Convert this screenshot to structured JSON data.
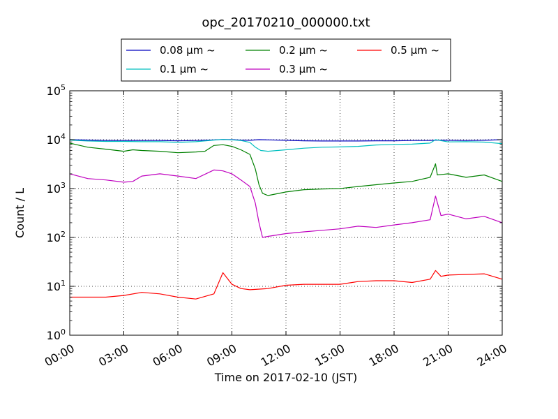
{
  "chart_data": {
    "type": "line",
    "title": "opc_20170210_000000.txt",
    "xlabel": "Time on 2017-02-10 (JST)",
    "ylabel": "Count / L",
    "xlim": [
      0,
      24
    ],
    "ylim": [
      1,
      100000
    ],
    "yscale": "log",
    "grid": true,
    "legend_position": "top-center",
    "legend_columns": 3,
    "x_ticks": [
      0,
      3,
      6,
      9,
      12,
      15,
      18,
      21,
      24
    ],
    "x_tick_labels": [
      "00:00",
      "03:00",
      "06:00",
      "09:00",
      "12:00",
      "15:00",
      "18:00",
      "21:00",
      "24:00"
    ],
    "y_ticks": [
      1,
      10,
      100,
      1000,
      10000,
      100000
    ],
    "y_tick_labels": [
      {
        "base": "10",
        "exp": "0"
      },
      {
        "base": "10",
        "exp": "1"
      },
      {
        "base": "10",
        "exp": "2"
      },
      {
        "base": "10",
        "exp": "3"
      },
      {
        "base": "10",
        "exp": "4"
      },
      {
        "base": "10",
        "exp": "5"
      }
    ],
    "series": [
      {
        "name": "0.08 μm ~",
        "color": "#0000bf",
        "x": [
          0,
          1,
          2,
          3,
          4,
          5,
          6,
          7,
          8,
          8.5,
          9,
          9.5,
          10,
          10.5,
          11,
          12,
          13,
          14,
          15,
          16,
          17,
          18,
          19,
          20,
          20.3,
          21,
          22,
          23,
          24
        ],
        "y": [
          10000,
          9800,
          9600,
          9600,
          9600,
          9600,
          9500,
          9600,
          9900,
          10100,
          10000,
          9800,
          9700,
          10000,
          9900,
          9700,
          9500,
          9400,
          9400,
          9400,
          9500,
          9500,
          9600,
          9600,
          9800,
          9700,
          9600,
          9700,
          10000
        ]
      },
      {
        "name": "0.1 μm ~",
        "color": "#00bfbf",
        "x": [
          0,
          1,
          2,
          3,
          4,
          5,
          6,
          7,
          8,
          8.5,
          9,
          9.5,
          10,
          10.3,
          10.6,
          11,
          12,
          13,
          14,
          15,
          16,
          17,
          18,
          19,
          20,
          20.3,
          21,
          22,
          23,
          24
        ],
        "y": [
          9800,
          9400,
          9200,
          9200,
          9100,
          9100,
          8800,
          9100,
          9800,
          10100,
          9900,
          9600,
          8800,
          7000,
          6000,
          5800,
          6200,
          6700,
          7000,
          7100,
          7300,
          7800,
          8000,
          8100,
          8500,
          10000,
          9000,
          9100,
          8900,
          8300
        ]
      },
      {
        "name": "0.2 μm ~",
        "color": "#008000",
        "x": [
          0,
          1,
          2,
          3,
          3.5,
          4,
          5,
          6,
          7,
          7.5,
          8,
          8.5,
          9,
          9.5,
          10,
          10.3,
          10.5,
          10.7,
          11,
          12,
          13,
          14,
          15,
          16,
          17,
          18,
          19,
          20,
          20.3,
          20.4,
          21,
          22,
          23,
          24
        ],
        "y": [
          8500,
          7000,
          6400,
          5800,
          6200,
          6000,
          5800,
          5400,
          5600,
          5800,
          7600,
          7900,
          7300,
          6200,
          5000,
          2500,
          1200,
          800,
          720,
          850,
          950,
          980,
          1000,
          1100,
          1200,
          1300,
          1400,
          1700,
          3200,
          1900,
          2000,
          1700,
          1900,
          1400
        ]
      },
      {
        "name": "0.3 μm ~",
        "color": "#bf00bf",
        "x": [
          0,
          1,
          2,
          3,
          3.5,
          4,
          5,
          6,
          7,
          8,
          8.5,
          9,
          9.5,
          10,
          10.3,
          10.5,
          10.7,
          11,
          12,
          13,
          14,
          15,
          16,
          17,
          18,
          19,
          20,
          20.3,
          20.6,
          21,
          22,
          23,
          24
        ],
        "y": [
          2000,
          1600,
          1500,
          1350,
          1400,
          1800,
          2000,
          1800,
          1600,
          2400,
          2300,
          2000,
          1500,
          1100,
          500,
          200,
          100,
          105,
          120,
          130,
          140,
          150,
          170,
          160,
          180,
          200,
          230,
          700,
          280,
          300,
          240,
          270,
          200
        ]
      },
      {
        "name": "0.5 μm ~",
        "color": "#ff0000",
        "x": [
          0,
          1,
          2,
          3,
          4,
          5,
          6,
          7,
          8,
          8.5,
          9,
          9.5,
          10,
          11,
          12,
          13,
          14,
          15,
          16,
          17,
          18,
          19,
          20,
          20.3,
          20.6,
          21,
          22,
          23,
          24
        ],
        "y": [
          6,
          6,
          6,
          6.5,
          7.5,
          7,
          6,
          5.5,
          7,
          19,
          11,
          9,
          8.5,
          9,
          10.5,
          11,
          11,
          11,
          12.5,
          13,
          13,
          12,
          14,
          21,
          16,
          17,
          17.5,
          18,
          14
        ]
      }
    ]
  }
}
